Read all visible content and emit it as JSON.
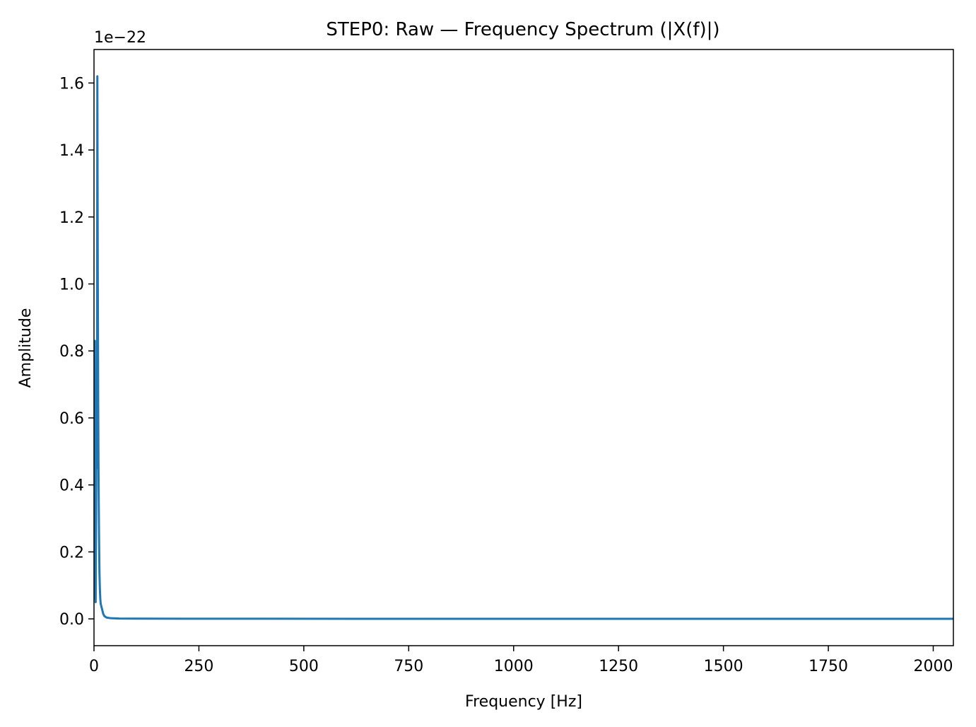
{
  "chart_data": {
    "type": "line",
    "title": "STEP0: Raw — Frequency Spectrum (|X(f)|)",
    "xlabel": "Frequency [Hz]",
    "ylabel": "Amplitude",
    "y_offset_label": "1e−22",
    "xlim": [
      0,
      2048
    ],
    "ylim": [
      -0.08,
      1.7
    ],
    "y_scale_note": "values in units of 1e-22",
    "x_ticks": [
      0,
      250,
      500,
      750,
      1000,
      1250,
      1500,
      1750,
      2000
    ],
    "x_tick_labels": [
      "0",
      "250",
      "500",
      "750",
      "1000",
      "1250",
      "1500",
      "1750",
      "2000"
    ],
    "y_ticks": [
      0.0,
      0.2,
      0.4,
      0.6,
      0.8,
      1.0,
      1.2,
      1.4,
      1.6
    ],
    "y_tick_labels": [
      "0.0",
      "0.2",
      "0.4",
      "0.6",
      "0.8",
      "1.0",
      "1.2",
      "1.4",
      "1.6"
    ],
    "grid": false,
    "legend": "none",
    "series": [
      {
        "color": "#1f77b4",
        "x": [
          0,
          1,
          2,
          3,
          4,
          5,
          6,
          7,
          8,
          9,
          10,
          11,
          12,
          13,
          14,
          15,
          16,
          18,
          20,
          22,
          25,
          30,
          40,
          60,
          100,
          200,
          400,
          800,
          1200,
          1600,
          2048
        ],
        "y": [
          0.06,
          0.35,
          0.83,
          0.2,
          0.05,
          0.3,
          0.7,
          0.45,
          1.62,
          1.05,
          0.65,
          0.4,
          0.25,
          0.14,
          0.09,
          0.06,
          0.045,
          0.035,
          0.025,
          0.015,
          0.008,
          0.004,
          0.002,
          0.001,
          0.0008,
          0.0005,
          0.0004,
          0.0003,
          0.0003,
          0.0002,
          0.0002
        ]
      }
    ]
  }
}
